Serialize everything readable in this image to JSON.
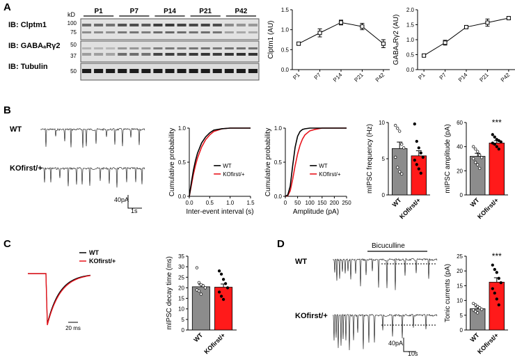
{
  "panels": {
    "A": {
      "letter": "A",
      "blot": {
        "mw_unit": "kD",
        "ages": [
          "P1",
          "P7",
          "P14",
          "P21",
          "P42"
        ],
        "rows": [
          {
            "label": "IB: Clptm1",
            "markers": [
              "100",
              "75"
            ]
          },
          {
            "label": "IB: GABAₐRγ2",
            "markers": [
              "50",
              "37"
            ]
          },
          {
            "label": "IB: Tubulin",
            "markers": [
              "50"
            ]
          }
        ]
      }
    },
    "B": {
      "letter": "B",
      "trace_labels": [
        "WT",
        "KOfirst/+"
      ],
      "scalebar": {
        "amp": "40pA",
        "time": "1s"
      }
    },
    "C": {
      "letter": "C",
      "legend": [
        "WT",
        "KOfirst/+"
      ],
      "scalebar": {
        "time": "20 ms"
      }
    },
    "D": {
      "letter": "D",
      "trace_labels": [
        "WT",
        "KOfirst/+"
      ],
      "drug": "Bicuculline",
      "scalebar": {
        "amp": "40pA",
        "time": "10s"
      }
    }
  },
  "colors": {
    "wt": "#000000",
    "ko": "#e8141c",
    "bar_wt": "#8c8c8c",
    "bar_ko": "#ff1a1a"
  },
  "chart_data": [
    {
      "id": "clptm1",
      "type": "line",
      "categories": [
        "P1",
        "P7",
        "P14",
        "P21",
        "P42"
      ],
      "values": [
        0.65,
        0.92,
        1.18,
        1.08,
        0.65
      ],
      "errors": [
        0.03,
        0.1,
        0.06,
        0.08,
        0.1
      ],
      "ylabel": "Clptm1 (AU)",
      "ylim": [
        0,
        1.5
      ],
      "yticks": [
        "0.0",
        "0.5",
        "1.0",
        "1.5"
      ]
    },
    {
      "id": "gaba",
      "type": "line",
      "categories": [
        "P1",
        "P7",
        "P14",
        "P21",
        "P42"
      ],
      "values": [
        0.47,
        0.9,
        1.42,
        1.57,
        1.72
      ],
      "errors": [
        0.03,
        0.08,
        0.05,
        0.12,
        0.04
      ],
      "ylabel": "GABAₐRγ2 (AU)",
      "ylim": [
        0,
        2.0
      ],
      "yticks": [
        "0.0",
        "0.5",
        "1.0",
        "1.5",
        "2.0"
      ]
    },
    {
      "id": "cum_iei",
      "type": "line",
      "xlabel": "Inter-event interval (s)",
      "ylabel": "Cumulative probability",
      "xlim": [
        0,
        1.5
      ],
      "ylim": [
        0,
        1.0
      ],
      "xticks": [
        "0.0",
        "0.5",
        "1.0",
        "1.5"
      ],
      "yticks": [
        "0.0",
        "0.5",
        "1.0"
      ],
      "legend": [
        "WT",
        "KOfirst/+"
      ],
      "series": [
        {
          "name": "WT",
          "x": [
            0,
            0.05,
            0.1,
            0.15,
            0.2,
            0.3,
            0.4,
            0.5,
            0.6,
            0.8,
            1.0,
            1.5
          ],
          "y": [
            0,
            0.2,
            0.38,
            0.52,
            0.63,
            0.78,
            0.87,
            0.93,
            0.97,
            0.99,
            1.0,
            1.0
          ]
        },
        {
          "name": "KOfirst/+",
          "x": [
            0,
            0.05,
            0.1,
            0.15,
            0.2,
            0.3,
            0.4,
            0.5,
            0.6,
            0.8,
            1.0,
            1.5
          ],
          "y": [
            0,
            0.16,
            0.32,
            0.45,
            0.56,
            0.72,
            0.83,
            0.9,
            0.95,
            0.99,
            1.0,
            1.0
          ]
        }
      ]
    },
    {
      "id": "cum_amp",
      "type": "line",
      "xlabel": "Amplitude (pA)",
      "ylabel": "Cumulative probability",
      "xlim": [
        0,
        250
      ],
      "ylim": [
        0,
        1.0
      ],
      "xticks": [
        "0",
        "50",
        "100",
        "150",
        "200",
        "250"
      ],
      "yticks": [
        "0.0",
        "0.5",
        "1.0"
      ],
      "legend": [
        "WT",
        "KOfirst/+"
      ],
      "series": [
        {
          "name": "WT",
          "x": [
            0,
            10,
            20,
            30,
            40,
            50,
            60,
            70,
            80,
            100,
            120,
            250
          ],
          "y": [
            0,
            0.02,
            0.15,
            0.45,
            0.72,
            0.88,
            0.95,
            0.98,
            0.99,
            1.0,
            1.0,
            1.0
          ]
        },
        {
          "name": "KOfirst/+",
          "x": [
            0,
            10,
            20,
            30,
            40,
            50,
            60,
            70,
            80,
            100,
            120,
            150,
            250
          ],
          "y": [
            0,
            0.01,
            0.08,
            0.25,
            0.45,
            0.62,
            0.75,
            0.84,
            0.9,
            0.96,
            0.98,
            1.0,
            1.0
          ]
        }
      ]
    },
    {
      "id": "freq",
      "type": "bar",
      "categories": [
        "WT",
        "KOfirst/+"
      ],
      "values": [
        6.4,
        5.4
      ],
      "errors": [
        0.9,
        0.7
      ],
      "points": [
        [
          9.6,
          9.2,
          8.8,
          7.0,
          6.5,
          5.2,
          3.8,
          3.2,
          2.9
        ],
        [
          9.8,
          7.4,
          6.5,
          5.8,
          5.2,
          4.8,
          4.2,
          3.6,
          3.0
        ]
      ],
      "ylabel": "mIPSC frequency (Hz)",
      "ylim": [
        0,
        10
      ],
      "yticks": [
        "0",
        "5",
        "10"
      ]
    },
    {
      "id": "amp",
      "type": "bar",
      "categories": [
        "WT",
        "KOfirst/+"
      ],
      "values": [
        32,
        43
      ],
      "errors": [
        2.5,
        2.0
      ],
      "points": [
        [
          40,
          38,
          36,
          33,
          31,
          30,
          27,
          25,
          22
        ],
        [
          50,
          48,
          46,
          45,
          44,
          43,
          42,
          40,
          38
        ]
      ],
      "ylabel": "mIPSC amplitude (pA)",
      "ylim": [
        0,
        60
      ],
      "yticks": [
        "0",
        "20",
        "40",
        "60"
      ],
      "significance": "***"
    },
    {
      "id": "decay",
      "type": "bar",
      "categories": [
        "WT",
        "KOfirst/+"
      ],
      "values": [
        20.5,
        20.3
      ],
      "errors": [
        1.0,
        1.5
      ],
      "points": [
        [
          29.5,
          22.5,
          21.5,
          21,
          20,
          19,
          18.5,
          17
        ],
        [
          28,
          26.5,
          24,
          22,
          20,
          18,
          16,
          14.5
        ]
      ],
      "ylabel": "mIPSC decay time (ms)",
      "ylim": [
        0,
        35
      ],
      "yticks": [
        "0",
        "5",
        "10",
        "15",
        "20",
        "25",
        "30",
        "35"
      ]
    },
    {
      "id": "tonic",
      "type": "bar",
      "categories": [
        "WT",
        "KOfirst/+"
      ],
      "values": [
        7.2,
        16.2
      ],
      "errors": [
        0.6,
        1.5
      ],
      "points": [
        [
          9.0,
          8.5,
          8.0,
          7.5,
          7.0,
          6.8,
          6.3,
          5.8
        ],
        [
          22.0,
          20.5,
          19.5,
          17.5,
          16.0,
          14.0,
          12.5,
          10.5,
          8.5
        ]
      ],
      "ylabel": "Tonic currents (pA)",
      "ylim": [
        0,
        25
      ],
      "yticks": [
        "0",
        "5",
        "10",
        "15",
        "20",
        "25"
      ],
      "significance": "***"
    }
  ]
}
